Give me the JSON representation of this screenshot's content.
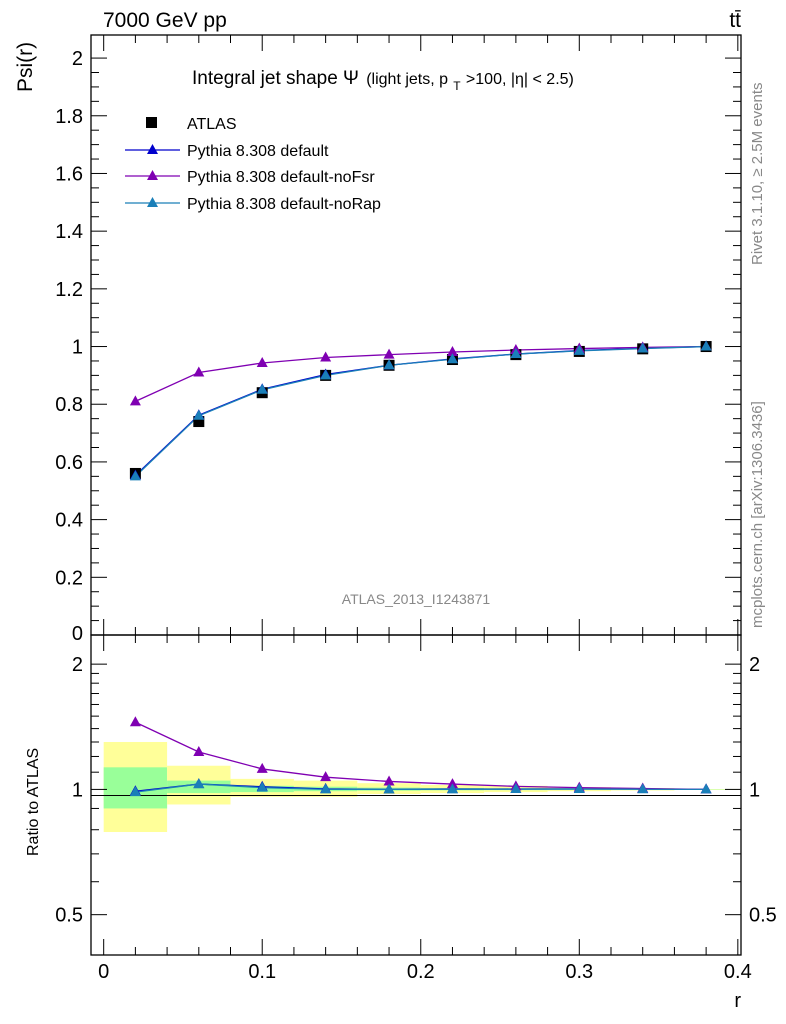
{
  "header": {
    "energy_label": "7000 GeV pp",
    "process_label": "tt̄",
    "side_rivet": "Rivet 3.1.10, ≥ 2.5M events",
    "side_mcplots": "mcplots.cern.ch [arXiv:1306.3436]",
    "watermark": "ATLAS_2013_I1243871"
  },
  "chart_data": [
    {
      "type": "line",
      "title_main": "Integral jet shape",
      "title_symbol": "Ψ",
      "title_cond_a": "(light jets, p",
      "title_cond_sub": "T",
      "title_cond_b": ">100, |η| < 2.5)",
      "xlabel": "r",
      "ylabel": "Psi(r)",
      "xlim": [
        -0.008,
        0.402
      ],
      "ylim": [
        0,
        2.08
      ],
      "yticks": [
        {
          "v": 0.2,
          "label": "0.2"
        },
        {
          "v": 0.4,
          "label": "0.4"
        },
        {
          "v": 0.6,
          "label": "0.6"
        },
        {
          "v": 0.8,
          "label": "0.8"
        },
        {
          "v": 1.0,
          "label": "1"
        },
        {
          "v": 1.2,
          "label": "1.2"
        },
        {
          "v": 1.4,
          "label": "1.4"
        },
        {
          "v": 1.6,
          "label": "1.6"
        },
        {
          "v": 1.8,
          "label": "1.8"
        },
        {
          "v": 2.0,
          "label": "2"
        }
      ],
      "y_bottom_label": "0",
      "x": [
        0.02,
        0.06,
        0.1,
        0.14,
        0.18,
        0.22,
        0.26,
        0.3,
        0.34,
        0.38
      ],
      "data": {
        "name": "ATLAS",
        "values": [
          0.56,
          0.74,
          0.84,
          0.9,
          0.935,
          0.955,
          0.972,
          0.983,
          0.992,
          1.0
        ]
      },
      "series": [
        {
          "name": "Pythia 8.308 default",
          "color": "#0000cc",
          "values": [
            0.553,
            0.762,
            0.852,
            0.903,
            0.935,
            0.957,
            0.974,
            0.986,
            0.994,
            1.0
          ]
        },
        {
          "name": "Pythia 8.308 default-noFsr",
          "color": "#7f00b2",
          "values": [
            0.81,
            0.91,
            0.943,
            0.962,
            0.972,
            0.981,
            0.988,
            0.993,
            0.997,
            1.0
          ]
        },
        {
          "name": "Pythia 8.308 default-noRap",
          "color": "#1a7fb8",
          "values": [
            0.55,
            0.76,
            0.85,
            0.9,
            0.935,
            0.956,
            0.974,
            0.985,
            0.993,
            1.0
          ]
        }
      ],
      "legend_position": "top-left",
      "grid": false
    },
    {
      "type": "line",
      "ylabel": "Ratio to ATLAS",
      "xlabel": "r",
      "xlim": [
        -0.008,
        0.402
      ],
      "ylim": [
        0.4,
        2.35
      ],
      "log_y": true,
      "yticks": [
        {
          "v": 0.5,
          "label": "0.5"
        },
        {
          "v": 1,
          "label": "1"
        },
        {
          "v": 2,
          "label": "2"
        }
      ],
      "xticks": [
        {
          "v": 0,
          "label": "0"
        },
        {
          "v": 0.1,
          "label": "0.1"
        },
        {
          "v": 0.2,
          "label": "0.2"
        },
        {
          "v": 0.3,
          "label": "0.3"
        },
        {
          "v": 0.4,
          "label": "0.4"
        }
      ],
      "bands": [
        {
          "x0": 0.0,
          "x1": 0.04,
          "stat_lo": 0.9,
          "stat_hi": 1.13,
          "tot_lo": 0.79,
          "tot_hi": 1.3
        },
        {
          "x0": 0.04,
          "x1": 0.08,
          "stat_lo": 0.98,
          "stat_hi": 1.05,
          "tot_lo": 0.92,
          "tot_hi": 1.14
        },
        {
          "x0": 0.08,
          "x1": 0.12,
          "stat_lo": 0.985,
          "stat_hi": 1.02,
          "tot_lo": 0.96,
          "tot_hi": 1.06
        },
        {
          "x0": 0.12,
          "x1": 0.16,
          "stat_lo": 0.99,
          "stat_hi": 1.015,
          "tot_lo": 0.96,
          "tot_hi": 1.05
        },
        {
          "x0": 0.16,
          "x1": 0.2,
          "stat_lo": 0.993,
          "stat_hi": 1.01,
          "tot_lo": 0.975,
          "tot_hi": 1.035
        },
        {
          "x0": 0.2,
          "x1": 0.24,
          "stat_lo": 0.995,
          "stat_hi": 1.008,
          "tot_lo": 0.98,
          "tot_hi": 1.025
        },
        {
          "x0": 0.24,
          "x1": 0.28,
          "stat_lo": 0.996,
          "stat_hi": 1.006,
          "tot_lo": 0.985,
          "tot_hi": 1.02
        },
        {
          "x0": 0.28,
          "x1": 0.32,
          "stat_lo": 0.997,
          "stat_hi": 1.004,
          "tot_lo": 0.99,
          "tot_hi": 1.012
        },
        {
          "x0": 0.32,
          "x1": 0.36,
          "stat_lo": 0.998,
          "stat_hi": 1.003,
          "tot_lo": 0.994,
          "tot_hi": 1.007
        },
        {
          "x0": 0.36,
          "x1": 0.4,
          "stat_lo": 0.999,
          "stat_hi": 1.001,
          "tot_lo": 0.998,
          "tot_hi": 1.002
        }
      ],
      "x": [
        0.02,
        0.06,
        0.1,
        0.14,
        0.18,
        0.22,
        0.26,
        0.3,
        0.34,
        0.38
      ],
      "series": [
        {
          "name": "Pythia 8.308 default",
          "color": "#0000cc",
          "values": [
            0.99,
            1.03,
            1.015,
            1.003,
            1.0,
            1.002,
            1.002,
            1.003,
            1.002,
            1.0
          ]
        },
        {
          "name": "Pythia 8.308 default-noFsr",
          "color": "#7f00b2",
          "values": [
            1.45,
            1.23,
            1.12,
            1.07,
            1.045,
            1.03,
            1.017,
            1.01,
            1.005,
            1.0
          ]
        },
        {
          "name": "Pythia 8.308 default-noRap",
          "color": "#1a7fb8",
          "values": [
            0.985,
            1.03,
            1.01,
            1.0,
            1.0,
            1.0,
            1.002,
            1.002,
            1.001,
            1.0
          ]
        }
      ]
    }
  ]
}
